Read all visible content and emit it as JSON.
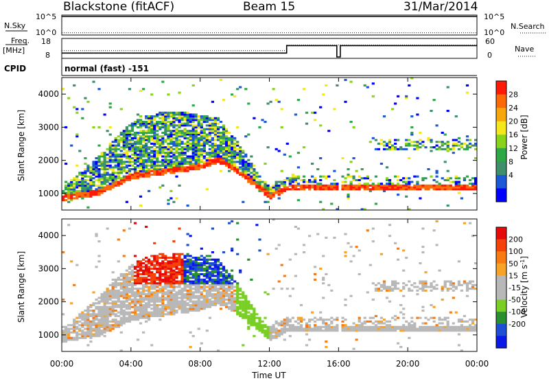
{
  "header": {
    "station": "Blackstone (fitACF)",
    "beam": "Beam 15",
    "date": "31/Mar/2014"
  },
  "colors": {
    "power": [
      "#0000ff",
      "#1c59d6",
      "#3f8f6a",
      "#2ea845",
      "#8ad31d",
      "#f4e81c",
      "#f5a70b",
      "#fb6a08",
      "#ff1a07"
    ],
    "velocity": [
      "#0a18e8",
      "#1f4fd4",
      "#2a8f2f",
      "#79cf24",
      "#b8b8b8",
      "#b8b8b8",
      "#f7a328",
      "#f77b12",
      "#f44208",
      "#e50b0b"
    ]
  },
  "chart_data": [
    {
      "type": "line",
      "panel": "N.Sky / N.Search",
      "ylabel_left": "N.Sky",
      "ylabel_right": "N.Search",
      "left_ticks": [
        "10^5",
        "10^0"
      ],
      "right_ticks": [
        "10^5",
        "10^0"
      ],
      "series": [
        {
          "name": "N.Sky",
          "style": "solid",
          "x_hours": [
            0,
            15.9,
            16.1,
            24
          ],
          "values": [
            100000,
            100000,
            100000,
            100000
          ]
        },
        {
          "name": "N.Search",
          "style": "dotted",
          "x_hours": [
            0,
            15.9,
            16.1,
            24
          ],
          "values": [
            1,
            1,
            1,
            1
          ]
        }
      ]
    },
    {
      "type": "line",
      "panel": "Freq. / Nave",
      "ylabel_left": "Freq.",
      "ylabel_left_unit": "[MHz]",
      "ylabel_right": "Nave",
      "left_ticks": [
        "18",
        "8"
      ],
      "right_ticks": [
        "60",
        "0"
      ],
      "series": [
        {
          "name": "Freq.",
          "style": "solid",
          "x_hours": [
            0,
            13,
            13,
            15.9,
            15.9,
            16.1,
            16.1,
            24
          ],
          "values": [
            10.3,
            10.3,
            14.6,
            14.6,
            8,
            8,
            14.6,
            14.6
          ]
        },
        {
          "name": "Nave",
          "style": "dotted",
          "x_hours": [
            0,
            13,
            13,
            24
          ],
          "values": [
            22,
            22,
            42,
            42
          ]
        }
      ]
    },
    {
      "type": "table",
      "panel": "CPID",
      "label": "CPID",
      "value": "normal (fast) -151"
    },
    {
      "type": "heatmap",
      "panel": "Power",
      "ylabel": "Slant Range [km]",
      "y_ticks": [
        "1000",
        "2000",
        "3000",
        "4000"
      ],
      "ylim": [
        500,
        4500
      ],
      "xlim_hours": [
        0,
        24
      ],
      "colorbar_label": "Power [dB]",
      "colorbar_ticks": [
        "28",
        "24",
        "20",
        "16",
        "12",
        "8",
        "4"
      ],
      "colorbar_range": [
        0,
        32
      ],
      "ridge_ranges_km": {
        "x_hours": [
          0,
          2,
          4,
          6,
          8,
          9,
          10,
          11,
          12,
          13,
          15.9,
          16.1,
          20,
          24
        ],
        "y_km": [
          850,
          1000,
          1500,
          1650,
          1800,
          2000,
          1700,
          1300,
          900,
          1150,
          1150,
          1150,
          1150,
          1150
        ]
      }
    },
    {
      "type": "heatmap",
      "panel": "Velocity",
      "ylabel": "Slant Range [km]",
      "y_ticks": [
        "1000",
        "2000",
        "3000",
        "4000"
      ],
      "ylim": [
        500,
        4500
      ],
      "xlim_hours": [
        0,
        24
      ],
      "xlabel": "Time UT",
      "x_ticks": [
        "00:00",
        "04:00",
        "08:00",
        "12:00",
        "16:00",
        "20:00",
        "00:00"
      ],
      "colorbar_label": "Velocity [m s",
      "colorbar_label_sup": "-1",
      "colorbar_label_end": "]",
      "colorbar_ticks": [
        "200",
        "100",
        "50",
        "15",
        "-15",
        "-50",
        "-100",
        "-200"
      ]
    }
  ]
}
